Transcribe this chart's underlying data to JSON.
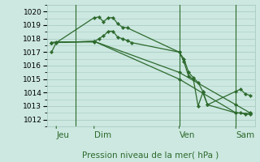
{
  "bg_color": "#cce8e0",
  "grid_color": "#aaccc4",
  "line_color": "#2d6a2d",
  "title": "Pression niveau de la mer( hPa )",
  "ylim": [
    1011.5,
    1020.5
  ],
  "yticks": [
    1012,
    1013,
    1014,
    1015,
    1016,
    1017,
    1018,
    1019,
    1020
  ],
  "day_labels": [
    "Jeu",
    "Dim",
    "Ven",
    "Sam"
  ],
  "day_positions": [
    0.5,
    4.5,
    13.5,
    19.5
  ],
  "vline_positions": [
    2.5,
    13.5,
    19.5
  ],
  "series1_x": [
    0,
    0.5,
    4.5,
    5.0,
    5.5,
    6.0,
    6.5,
    7.0,
    7.5,
    8.0,
    13.5,
    14.0,
    14.5,
    15.0,
    15.5,
    16.0,
    16.5,
    19.5,
    20.0,
    20.5,
    21.0
  ],
  "series1_y": [
    1017.0,
    1017.7,
    1019.55,
    1019.6,
    1019.25,
    1019.55,
    1019.55,
    1019.1,
    1018.85,
    1018.8,
    1017.0,
    1016.5,
    1015.5,
    1015.1,
    1014.75,
    1014.1,
    1013.1,
    1014.1,
    1014.25,
    1013.9,
    1013.8
  ],
  "series2_x": [
    0,
    0.5,
    4.5,
    5.0,
    5.5,
    6.0,
    6.5,
    7.0,
    7.5,
    8.0,
    8.5,
    13.5,
    14.0,
    14.5,
    15.0,
    15.5,
    16.0,
    16.5,
    19.5,
    20.0,
    20.5,
    21.0
  ],
  "series2_y": [
    1017.7,
    1017.75,
    1017.75,
    1018.0,
    1018.2,
    1018.55,
    1018.55,
    1018.1,
    1018.0,
    1017.85,
    1017.7,
    1017.0,
    1016.3,
    1015.2,
    1015.0,
    1013.0,
    1014.0,
    1013.1,
    1012.5,
    1012.5,
    1012.4,
    1012.4
  ],
  "series3_x": [
    0,
    4.5,
    13.5,
    19.5,
    21.0
  ],
  "series3_y": [
    1017.7,
    1017.8,
    1015.5,
    1013.1,
    1012.5
  ],
  "series4_x": [
    0,
    4.5,
    13.5,
    19.5,
    21.0
  ],
  "series4_y": [
    1017.7,
    1017.8,
    1015.0,
    1012.5,
    1012.45
  ],
  "xmin": -0.5,
  "xmax": 21.5,
  "ytick_fontsize": 6.5,
  "label_fontsize": 7.5,
  "title_fontsize": 7.5
}
